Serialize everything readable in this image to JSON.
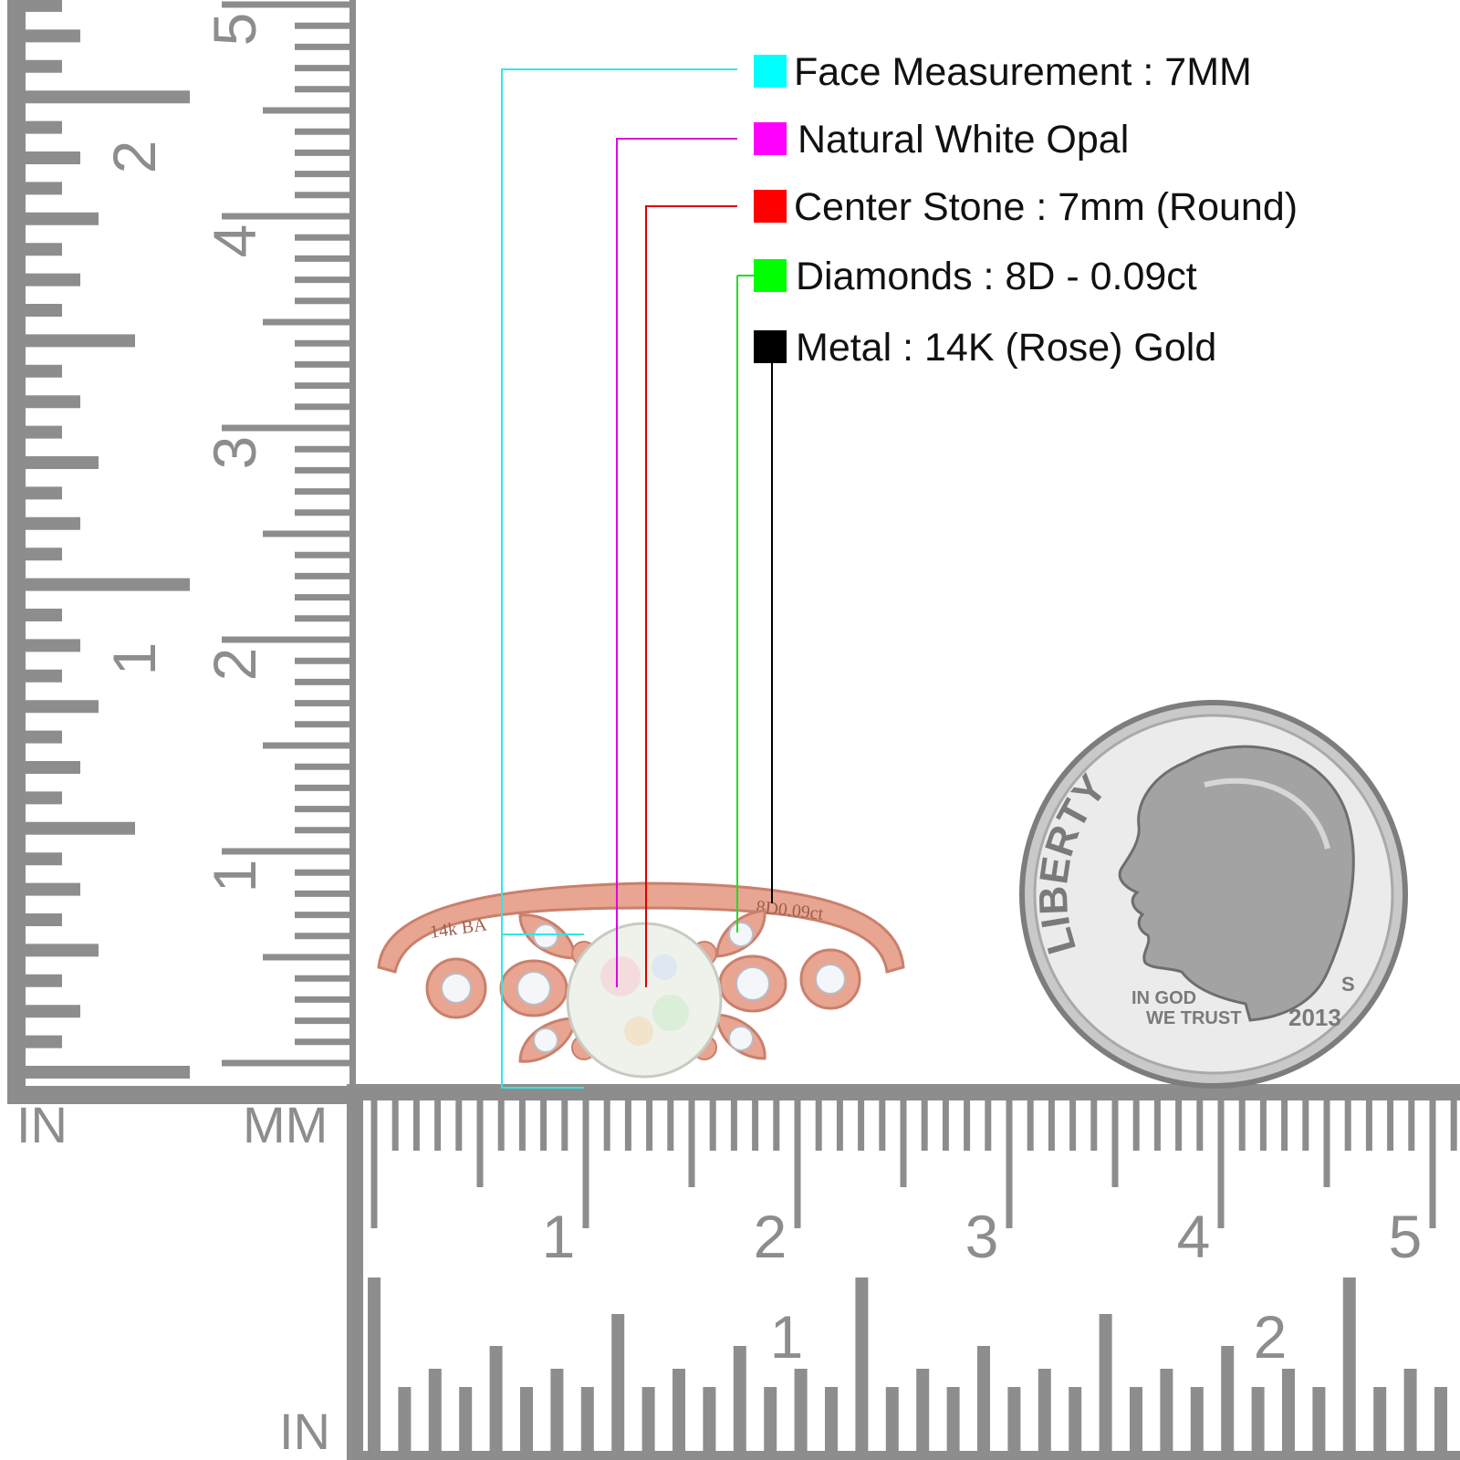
{
  "specs": [
    {
      "label": "Face Measurement : 7MM",
      "color": "#00ffff",
      "line_color": "#33e6e6"
    },
    {
      "label": "Natural White Opal",
      "color": "#ff00ff",
      "line_color": "#e000e0"
    },
    {
      "label": "Center Stone : 7mm (Round)",
      "color": "#ff0000",
      "line_color": "#dd0000"
    },
    {
      "label": "Diamonds : 8D - 0.09ct",
      "color": "#00ff00",
      "line_color": "#22dd22"
    },
    {
      "label": "Metal : 14K (Rose) Gold",
      "color": "#000000",
      "line_color": "#000000"
    }
  ],
  "vertical_ruler": {
    "inch_labels": [
      "1",
      "2"
    ],
    "mm_labels": [
      "1",
      "2",
      "3",
      "4",
      "5"
    ]
  },
  "horizontal_ruler": {
    "mm_labels": [
      "1",
      "2",
      "3",
      "4",
      "5"
    ],
    "inch_labels": [
      "1",
      "2"
    ]
  },
  "unit_labels": {
    "in_top": "IN",
    "mm": "MM",
    "in_bottom": "IN"
  },
  "ring": {
    "engraving_left": "14k BA",
    "engraving_right": "8D0.09ct",
    "metal_color": "#e8a591",
    "stone_color": "#eef2ea"
  },
  "coin": {
    "legend": "LIBERTY",
    "motto_line1": "IN GOD",
    "motto_line2": "WE TRUST",
    "year": "2013",
    "mint_mark": "S"
  }
}
